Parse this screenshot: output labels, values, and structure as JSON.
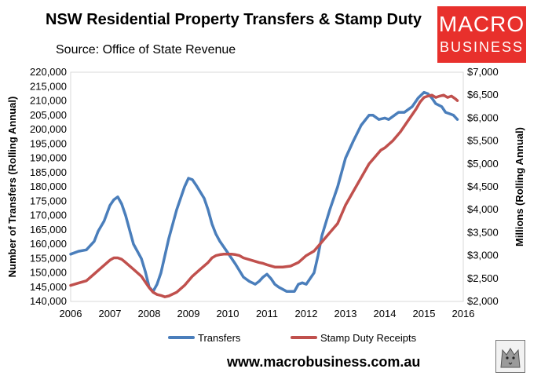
{
  "header": {
    "title": "NSW Residential Property Transfers & Stamp Duty",
    "subtitle": "Source: Office of State Revenue"
  },
  "logo": {
    "line1": "MACRO",
    "line2": "BUSINESS",
    "color": "#e8302c"
  },
  "footer": {
    "url": "www.macrobusiness.com.au"
  },
  "chart_data": {
    "type": "line",
    "title": "NSW Residential Property Transfers & Stamp Duty",
    "subtitle": "Source: Office of State Revenue",
    "xlabel": "",
    "ylabel": "Number of Transfers (Rolling Annual)",
    "y2label": "Millions (Rolling Annual)",
    "xlim": [
      2006,
      2016
    ],
    "ylim": [
      140000,
      220000
    ],
    "y2lim": [
      2000,
      7000
    ],
    "x_ticks": [
      "2006",
      "2007",
      "2008",
      "2009",
      "2010",
      "2011",
      "2012",
      "2013",
      "2014",
      "2015",
      "2016"
    ],
    "y_ticks": [
      "140,000",
      "145,000",
      "150,000",
      "155,000",
      "160,000",
      "165,000",
      "170,000",
      "175,000",
      "180,000",
      "185,000",
      "190,000",
      "195,000",
      "200,000",
      "205,000",
      "210,000",
      "215,000",
      "220,000"
    ],
    "y2_ticks": [
      "$2,000",
      "$2,500",
      "$3,000",
      "$3,500",
      "$4,000",
      "$4,500",
      "$5,000",
      "$5,500",
      "$6,000",
      "$6,500",
      "$7,000"
    ],
    "grid": false,
    "legend_position": "bottom",
    "series": [
      {
        "name": "Transfers",
        "axis": "left",
        "color": "#4a7ebb",
        "x": [
          2006.0,
          2006.2,
          2006.4,
          2006.6,
          2006.7,
          2006.85,
          2007.0,
          2007.1,
          2007.2,
          2007.3,
          2007.4,
          2007.5,
          2007.6,
          2007.8,
          2007.9,
          2008.0,
          2008.1,
          2008.2,
          2008.3,
          2008.5,
          2008.7,
          2008.9,
          2009.0,
          2009.1,
          2009.2,
          2009.4,
          2009.5,
          2009.6,
          2009.7,
          2009.8,
          2009.9,
          2010.0,
          2010.2,
          2010.4,
          2010.55,
          2010.7,
          2010.8,
          2010.9,
          2011.0,
          2011.1,
          2011.2,
          2011.3,
          2011.5,
          2011.7,
          2011.8,
          2011.9,
          2012.0,
          2012.2,
          2012.3,
          2012.4,
          2012.6,
          2012.8,
          2013.0,
          2013.2,
          2013.4,
          2013.6,
          2013.7,
          2013.85,
          2014.0,
          2014.1,
          2014.2,
          2014.35,
          2014.5,
          2014.7,
          2014.85,
          2015.0,
          2015.1,
          2015.2,
          2015.3,
          2015.45,
          2015.55,
          2015.65,
          2015.75,
          2015.85
        ],
        "values": [
          156500,
          157500,
          158000,
          161000,
          164500,
          168000,
          173500,
          175500,
          176500,
          174000,
          170000,
          165000,
          160000,
          155000,
          150500,
          145000,
          143500,
          146000,
          150000,
          162000,
          172000,
          180000,
          183000,
          182500,
          180500,
          176000,
          172000,
          167000,
          163500,
          161000,
          159000,
          157000,
          153000,
          148500,
          147000,
          146000,
          147000,
          148500,
          149500,
          148000,
          146000,
          145000,
          143500,
          143500,
          146000,
          146500,
          146000,
          150000,
          156000,
          163000,
          172000,
          180000,
          190000,
          196000,
          201500,
          205000,
          205000,
          203500,
          204000,
          203500,
          204500,
          206000,
          206000,
          208000,
          211000,
          213000,
          212500,
          211000,
          209000,
          208000,
          206000,
          205500,
          205000,
          203500
        ]
      },
      {
        "name": "Stamp Duty Receipts",
        "axis": "right",
        "color": "#c0504d",
        "x": [
          2006.0,
          2006.2,
          2006.4,
          2006.6,
          2006.8,
          2007.0,
          2007.1,
          2007.2,
          2007.3,
          2007.4,
          2007.6,
          2007.8,
          2008.0,
          2008.1,
          2008.2,
          2008.3,
          2008.4,
          2008.5,
          2008.7,
          2008.9,
          2009.1,
          2009.3,
          2009.5,
          2009.6,
          2009.7,
          2009.8,
          2009.9,
          2010.1,
          2010.2,
          2010.3,
          2010.4,
          2010.6,
          2010.8,
          2010.9,
          2011.0,
          2011.2,
          2011.4,
          2011.6,
          2011.8,
          2012.0,
          2012.2,
          2012.4,
          2012.6,
          2012.8,
          2013.0,
          2013.2,
          2013.4,
          2013.6,
          2013.8,
          2013.9,
          2014.0,
          2014.2,
          2014.4,
          2014.6,
          2014.8,
          2014.9,
          2015.0,
          2015.1,
          2015.2,
          2015.3,
          2015.4,
          2015.5,
          2015.6,
          2015.7,
          2015.8,
          2015.85
        ],
        "values": [
          2350,
          2400,
          2450,
          2600,
          2750,
          2900,
          2950,
          2950,
          2920,
          2850,
          2700,
          2550,
          2300,
          2200,
          2150,
          2130,
          2100,
          2120,
          2200,
          2350,
          2550,
          2700,
          2850,
          2950,
          3000,
          3020,
          3030,
          3030,
          3020,
          3000,
          2950,
          2900,
          2850,
          2830,
          2800,
          2750,
          2750,
          2770,
          2850,
          3000,
          3100,
          3300,
          3500,
          3700,
          4100,
          4400,
          4700,
          5000,
          5200,
          5300,
          5350,
          5500,
          5700,
          5950,
          6200,
          6350,
          6450,
          6480,
          6500,
          6450,
          6480,
          6500,
          6450,
          6480,
          6420,
          6380
        ]
      }
    ]
  }
}
